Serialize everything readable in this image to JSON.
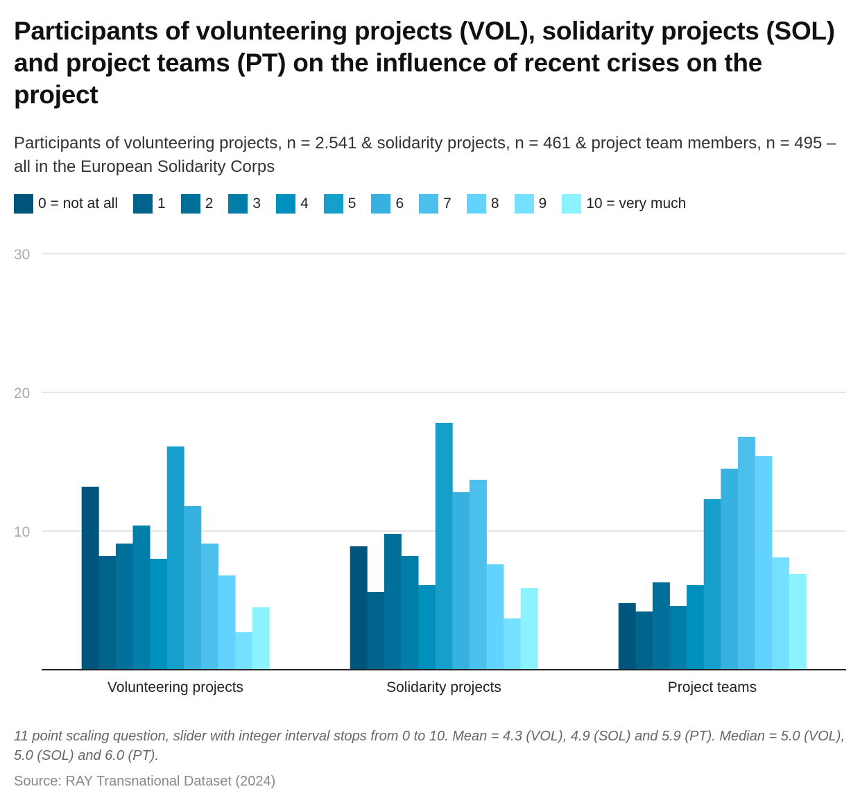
{
  "chart_data": {
    "type": "bar",
    "title": "Participants of volunteering projects (VOL), solidarity projects (SOL) and project teams (PT) on the influence of recent crises on the project",
    "subtitle": "Participants of volunteering projects, n = 2.541 & solidarity projects, n = 461 & project team members, n = 495 – all in the European Solidarity Corps",
    "xlabel": "",
    "ylabel": "",
    "ylim": [
      0,
      30
    ],
    "yticks": [
      "10",
      "20",
      "30"
    ],
    "ytick_values": [
      10,
      20,
      30
    ],
    "grid": true,
    "legend_position": "top-left",
    "categories": [
      "Volunteering projects",
      "Solidarity projects",
      "Project teams"
    ],
    "series": [
      {
        "name": "0 = not at all",
        "color": "#00557c",
        "values": [
          13.2,
          8.9,
          4.8
        ]
      },
      {
        "name": "1",
        "color": "#00638b",
        "values": [
          8.2,
          5.6,
          4.2
        ]
      },
      {
        "name": "2",
        "color": "#00709b",
        "values": [
          9.1,
          9.8,
          6.3
        ]
      },
      {
        "name": "3",
        "color": "#007eaa",
        "values": [
          10.4,
          8.2,
          4.6
        ]
      },
      {
        "name": "4",
        "color": "#0090bd",
        "values": [
          8.0,
          6.1,
          6.1
        ]
      },
      {
        "name": "5",
        "color": "#179fcc",
        "values": [
          16.1,
          17.8,
          12.3
        ]
      },
      {
        "name": "6",
        "color": "#37b1df",
        "values": [
          11.8,
          12.8,
          14.5
        ]
      },
      {
        "name": "7",
        "color": "#4bc0ed",
        "values": [
          9.1,
          13.7,
          16.8
        ]
      },
      {
        "name": "8",
        "color": "#63d2ff",
        "values": [
          6.8,
          7.6,
          15.4
        ]
      },
      {
        "name": "9",
        "color": "#75e0ff",
        "values": [
          2.7,
          3.7,
          8.1
        ]
      },
      {
        "name": "10 = very much",
        "color": "#8bf3ff",
        "values": [
          4.5,
          5.9,
          6.9
        ]
      }
    ],
    "footnote": "11 point scaling question, slider with integer interval stops from 0 to 10. Mean = 4.3 (VOL), 4.9 (SOL) and 5.9 (PT). Median = 5.0 (VOL), 5.0 (SOL) and 6.0 (PT).",
    "source": "Source: RAY Transnational Dataset (2024)"
  }
}
